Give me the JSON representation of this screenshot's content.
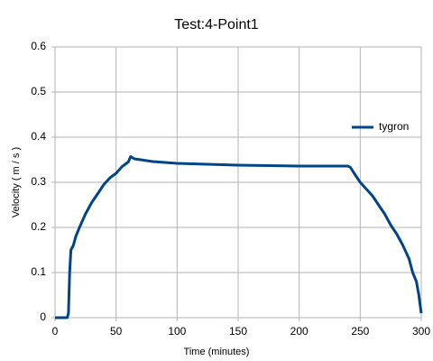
{
  "chart_data": {
    "type": "line",
    "title": "Test:4-Point1",
    "x_label": "Time (minutes)",
    "y_label": "Velocity ( m / s )",
    "series": [
      {
        "name": "tygron",
        "color": "#004586",
        "x": [
          0,
          10,
          11,
          12,
          13,
          15,
          17,
          20,
          25,
          30,
          35,
          40,
          45,
          50,
          55,
          60,
          62,
          65,
          80,
          100,
          150,
          200,
          240,
          242,
          245,
          250,
          255,
          260,
          265,
          270,
          275,
          280,
          285,
          290,
          293,
          296,
          298,
          299,
          300
        ],
        "values": [
          0,
          0,
          0.01,
          0.1,
          0.15,
          0.16,
          0.18,
          0.2,
          0.23,
          0.255,
          0.275,
          0.295,
          0.31,
          0.32,
          0.335,
          0.345,
          0.357,
          0.352,
          0.346,
          0.342,
          0.338,
          0.336,
          0.336,
          0.333,
          0.32,
          0.3,
          0.285,
          0.27,
          0.25,
          0.23,
          0.205,
          0.185,
          0.16,
          0.13,
          0.1,
          0.08,
          0.05,
          0.03,
          0.01
        ]
      }
    ],
    "xlim": [
      0,
      300
    ],
    "xticks": [
      0,
      50,
      100,
      150,
      200,
      250,
      300
    ],
    "ylim": [
      0,
      0.6
    ],
    "yticks": [
      0,
      0.1,
      0.2,
      0.3,
      0.4,
      0.5,
      0.6
    ],
    "grid": true,
    "legend": "right"
  }
}
